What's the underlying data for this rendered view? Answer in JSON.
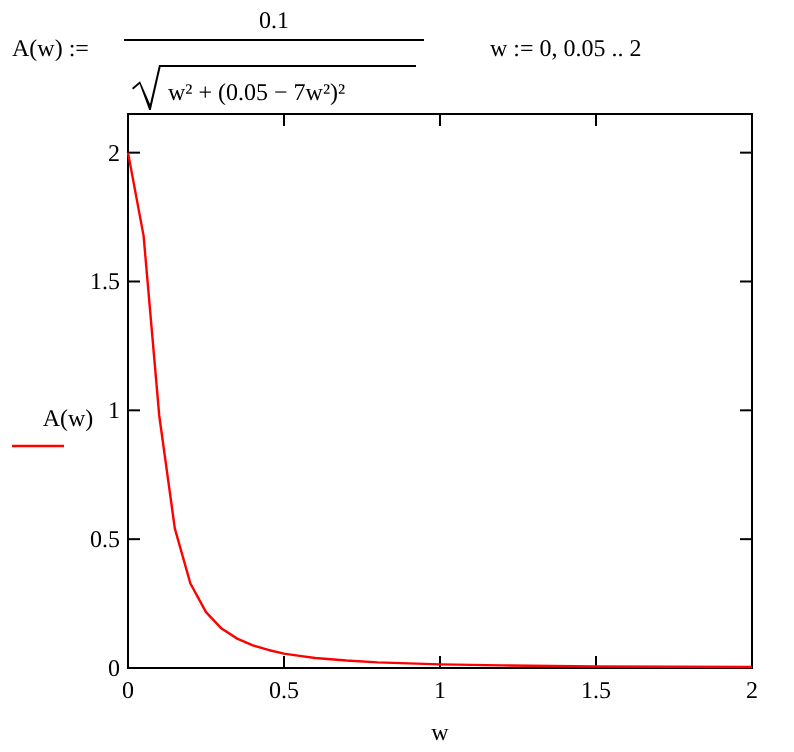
{
  "chart_data": {
    "type": "line",
    "xlabel": "w",
    "annotations": [
      "A(w) :=",
      "0.1",
      "w² + (0.05 − 7w²)²",
      "w := 0, 0.05 .. 2"
    ],
    "x": [
      0,
      0.05,
      0.1,
      0.15,
      0.2,
      0.25,
      0.3,
      0.35,
      0.4,
      0.45,
      0.5,
      0.55,
      0.6,
      0.7,
      0.8,
      1,
      1.2,
      1.5,
      2
    ],
    "series": [
      {
        "name": "A(w)",
        "color": "#ff0000",
        "values": [
          2,
          1.677,
          0.981,
          0.542,
          0.328,
          0.217,
          0.153,
          0.114,
          0.088,
          0.07,
          0.056,
          0.047,
          0.039,
          0.029,
          0.022,
          0.014,
          0.01,
          0.006,
          0.004
        ]
      }
    ],
    "xlim": [
      0,
      2
    ],
    "ylim": [
      0,
      2.15
    ],
    "xticks": [
      0,
      0.5,
      1,
      1.5,
      2
    ],
    "yticks": [
      0,
      0.5,
      1,
      1.5,
      2
    ],
    "legend": "left",
    "marker": "none",
    "line_style": "solid"
  }
}
